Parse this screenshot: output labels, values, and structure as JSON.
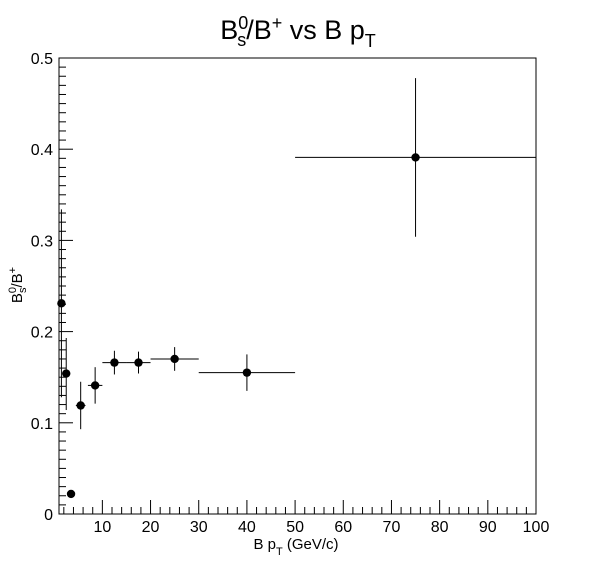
{
  "chart_data": {
    "type": "scatter",
    "title": {
      "base": "B",
      "sup1": "0",
      "sub1": "s",
      "mid": "/B",
      "sup2": "+",
      "tail": " vs B p",
      "sub2": "T"
    },
    "xlabel": {
      "base": "B p",
      "sub": "T",
      "tail": " (GeV/c)"
    },
    "ylabel": {
      "base": "B",
      "sup1": "0",
      "sub1": "s",
      "mid": "/B",
      "sup2": "+"
    },
    "xlim": [
      1,
      100
    ],
    "ylim": [
      0,
      0.5
    ],
    "x_ticks": [
      10,
      20,
      30,
      40,
      50,
      60,
      70,
      80,
      90,
      100
    ],
    "x_tick_labels": [
      "10",
      "20",
      "30",
      "40",
      "50",
      "60",
      "70",
      "80",
      "90",
      "100"
    ],
    "y_ticks": [
      0,
      0.1,
      0.2,
      0.3,
      0.4,
      0.5
    ],
    "y_tick_labels": [
      "0",
      "0.1",
      "0.2",
      "0.3",
      "0.4",
      "0.5"
    ],
    "grid": false,
    "points": [
      {
        "x": 1.5,
        "xlo": 1.0,
        "xhi": 2.0,
        "y": 0.231,
        "ylo": 0.128,
        "yhi": 0.334
      },
      {
        "x": 2.5,
        "xlo": 2.0,
        "xhi": 3.0,
        "y": 0.154,
        "ylo": 0.114,
        "yhi": 0.193
      },
      {
        "x": 3.5,
        "xlo": 3.0,
        "xhi": 4.0,
        "y": 0.022,
        "ylo": 0.02,
        "yhi": 0.024
      },
      {
        "x": 5.5,
        "xlo": 4.5,
        "xhi": 6.5,
        "y": 0.119,
        "ylo": 0.093,
        "yhi": 0.145
      },
      {
        "x": 8.5,
        "xlo": 7.0,
        "xhi": 10.0,
        "y": 0.141,
        "ylo": 0.121,
        "yhi": 0.161
      },
      {
        "x": 12.5,
        "xlo": 10.0,
        "xhi": 15.0,
        "y": 0.166,
        "ylo": 0.153,
        "yhi": 0.179
      },
      {
        "x": 17.5,
        "xlo": 15.0,
        "xhi": 20.0,
        "y": 0.166,
        "ylo": 0.154,
        "yhi": 0.178
      },
      {
        "x": 25.0,
        "xlo": 20.0,
        "xhi": 30.0,
        "y": 0.17,
        "ylo": 0.157,
        "yhi": 0.183
      },
      {
        "x": 40.0,
        "xlo": 30.0,
        "xhi": 50.0,
        "y": 0.155,
        "ylo": 0.135,
        "yhi": 0.175
      },
      {
        "x": 75.0,
        "xlo": 50.0,
        "xhi": 100.0,
        "y": 0.391,
        "ylo": 0.304,
        "yhi": 0.478
      }
    ]
  }
}
